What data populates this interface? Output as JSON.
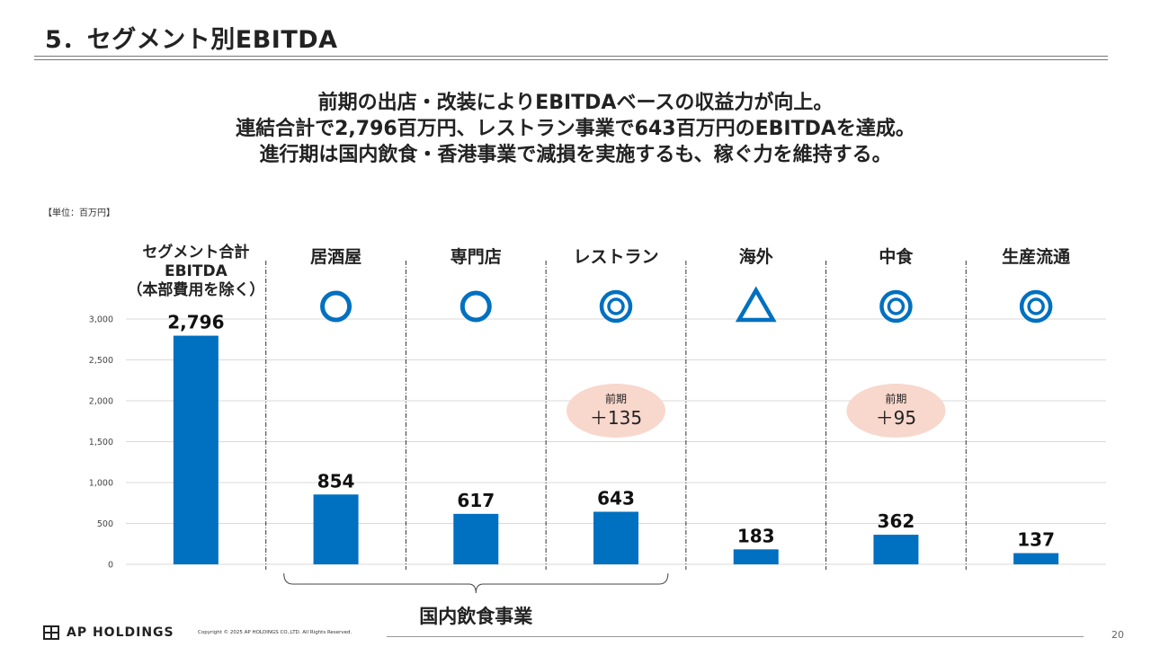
{
  "page": {
    "title": "5．セグメント別EBITDA",
    "headline": [
      "前期の出店・改装によりEBITDAベースの収益力が向上。",
      "連結合計で2,796百万円、レストラン事業で643百万円のEBITDAを達成。",
      "進行期は国内飲食・香港事業で減損を実施するも、稼ぐ力を維持する。"
    ],
    "unit": "【単位：百万円】",
    "footer": {
      "brand": "AP HOLDINGS",
      "copyright": "Copyright © 2025 AP HOLDINGS CO.,LTD.  All Rights Reserved.",
      "page_number": "20"
    }
  },
  "colors": {
    "bar": "#0070c0",
    "symbol": "#0070c0",
    "bubble": "#f8d7cc",
    "grid": "#d9d9d9"
  },
  "chart_data": {
    "type": "bar",
    "categories": [
      [
        "セグメント合計",
        "EBITDA",
        "（本部費用を除く）"
      ],
      [
        "居酒屋"
      ],
      [
        "専門店"
      ],
      [
        "レストラン"
      ],
      [
        "海外"
      ],
      [
        "中食"
      ],
      [
        "生産流通"
      ]
    ],
    "values": [
      2796,
      854,
      617,
      643,
      183,
      362,
      137
    ],
    "value_labels": [
      "2,796",
      "854",
      "617",
      "643",
      "183",
      "362",
      "137"
    ],
    "ylim": [
      0,
      3000
    ],
    "yticks": [
      0,
      500,
      1000,
      1500,
      2000,
      2500,
      3000
    ],
    "ytick_labels": [
      "0",
      "500",
      "1,000",
      "1,500",
      "2,000",
      "2,500",
      "3,000"
    ],
    "grid": true,
    "symbols": [
      null,
      "single-circle-icon",
      "single-circle-icon",
      "double-circle-icon",
      "triangle-icon",
      "double-circle-icon",
      "double-circle-icon"
    ],
    "annotations": [
      {
        "category_index": 3,
        "lines": [
          "前期",
          "＋135"
        ]
      },
      {
        "category_index": 5,
        "lines": [
          "前期",
          "＋95"
        ]
      }
    ],
    "group_bracket": {
      "from_index": 1,
      "to_index": 3,
      "label": "国内飲食事業"
    }
  }
}
